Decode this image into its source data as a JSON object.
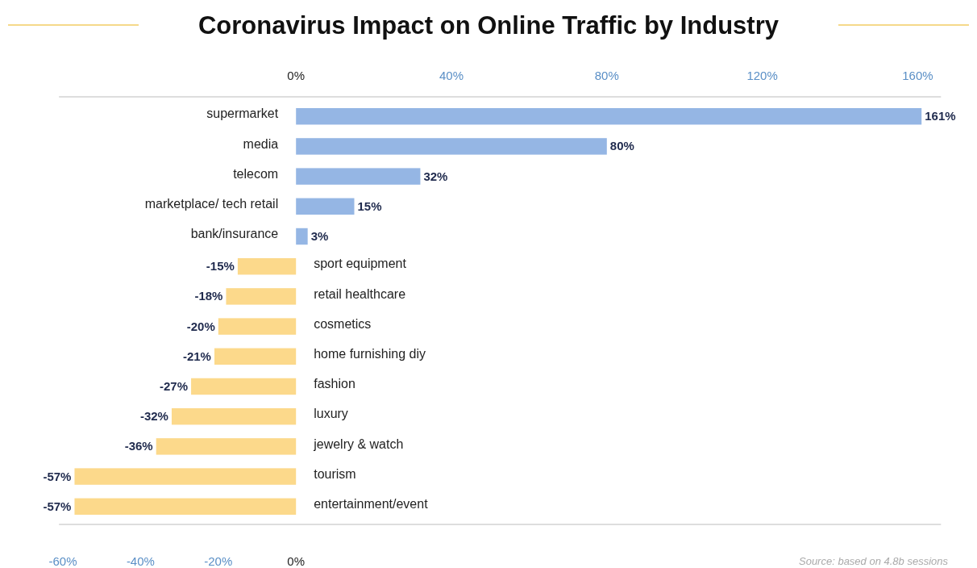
{
  "chart_data": {
    "type": "bar",
    "orientation": "horizontal",
    "title": "Coronavirus Impact on Online Traffic by Industry",
    "categories": [
      "supermarket",
      "media",
      "telecom",
      "marketplace/ tech retail",
      "bank/insurance",
      "sport equipment",
      "retail healthcare",
      "cosmetics",
      "home furnishing diy",
      "fashion",
      "luxury",
      "jewelry & watch",
      "tourism",
      "entertainment/event"
    ],
    "values": [
      161,
      80,
      32,
      15,
      3,
      -15,
      -18,
      -20,
      -21,
      -27,
      -32,
      -36,
      -57,
      -57
    ],
    "value_labels": [
      "161%",
      "80%",
      "32%",
      "15%",
      "3%",
      "-15%",
      "-18%",
      "-20%",
      "-21%",
      "-27%",
      "-32%",
      "-36%",
      "-57%",
      "-57%"
    ],
    "colors": [
      "#95b6e4",
      "#95b6e4",
      "#95b6e4",
      "#95b6e4",
      "#95b6e4",
      "#fcd98b",
      "#fcd98b",
      "#fcd98b",
      "#fcd98b",
      "#fcd98b",
      "#fcd98b",
      "#fcd98b",
      "#fcd98b",
      "#fcd98b"
    ],
    "xlim": [
      -61,
      166
    ],
    "xticks": [
      {
        "value": -60,
        "label": "-60%"
      },
      {
        "value": -40,
        "label": "-40%"
      },
      {
        "value": -20,
        "label": "-20%"
      },
      {
        "value": 0,
        "label": "0%"
      }
    ],
    "x2lim": [
      -61,
      166
    ],
    "x2ticks": [
      {
        "value": 0,
        "label": "0%"
      },
      {
        "value": 40,
        "label": "40%"
      },
      {
        "value": 80,
        "label": "80%"
      },
      {
        "value": 120,
        "label": "120%"
      },
      {
        "value": 160,
        "label": "160%"
      }
    ],
    "grid": false,
    "annotations": [
      "Source: based on 4.8b sessions"
    ]
  }
}
